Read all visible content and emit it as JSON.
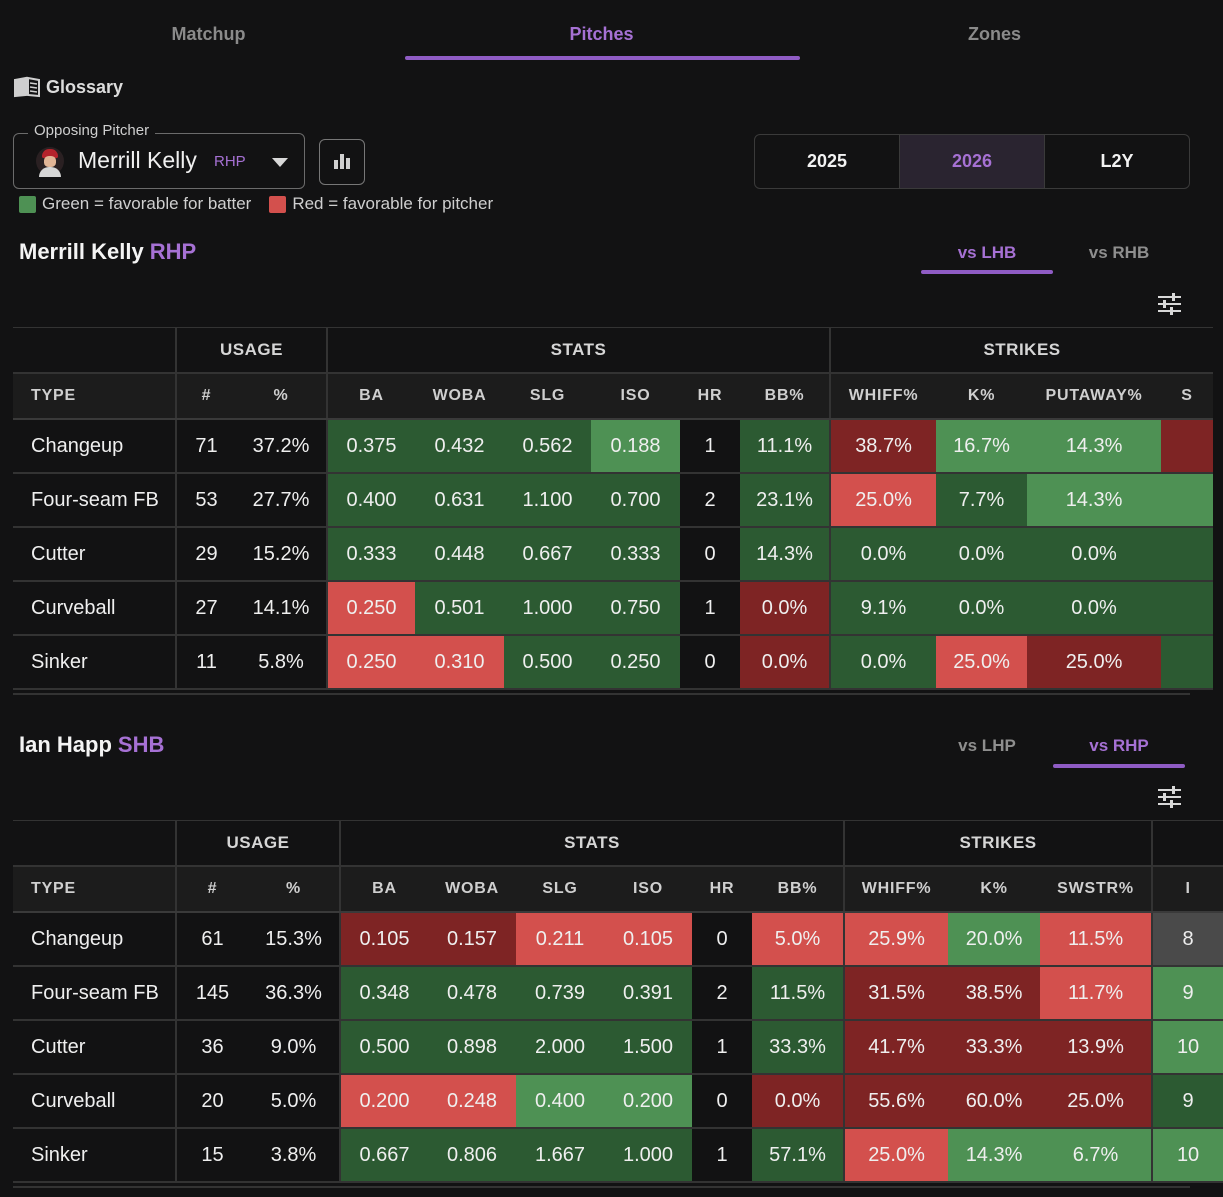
{
  "tabs": [
    "Matchup",
    "Pitches",
    "Zones"
  ],
  "active_tab": "Pitches",
  "glossary_label": "Glossary",
  "opposing_pitcher": {
    "label": "Opposing Pitcher",
    "name": "Merrill Kelly",
    "hand": "RHP"
  },
  "seasons": [
    "2025",
    "2026",
    "L2Y"
  ],
  "active_season": "2026",
  "legend": {
    "green": "Green = favorable for batter",
    "red": "Red = favorable for pitcher"
  },
  "colors": {
    "accent": "#a671d4",
    "green": "#2c5a32",
    "light_green": "#4e9154",
    "red": "#d3504d",
    "dark_red": "#7e2424"
  },
  "pitcher_section": {
    "name": "Merrill Kelly",
    "hand": "RHP",
    "splits": [
      "vs LHB",
      "vs RHB"
    ],
    "active_split": "vs LHB",
    "group_headers": [
      "",
      "USAGE",
      "STATS",
      "STRIKES"
    ],
    "columns": [
      "TYPE",
      "#",
      "%",
      "BA",
      "WOBA",
      "SLG",
      "ISO",
      "HR",
      "BB%",
      "WHIFF%",
      "K%",
      "PUTAWAY%",
      "S"
    ],
    "rows": [
      {
        "type": "Changeup",
        "count": "71",
        "pct": "37.2%",
        "ba": "0.375",
        "woba": "0.432",
        "slg": "0.562",
        "iso": "0.188",
        "hr": "1",
        "bb": "11.1%",
        "whiff": "38.7%",
        "k": "16.7%",
        "putaway": "14.3%",
        "extra": ""
      },
      {
        "type": "Four-seam FB",
        "count": "53",
        "pct": "27.7%",
        "ba": "0.400",
        "woba": "0.631",
        "slg": "1.100",
        "iso": "0.700",
        "hr": "2",
        "bb": "23.1%",
        "whiff": "25.0%",
        "k": "7.7%",
        "putaway": "14.3%",
        "extra": ""
      },
      {
        "type": "Cutter",
        "count": "29",
        "pct": "15.2%",
        "ba": "0.333",
        "woba": "0.448",
        "slg": "0.667",
        "iso": "0.333",
        "hr": "0",
        "bb": "14.3%",
        "whiff": "0.0%",
        "k": "0.0%",
        "putaway": "0.0%",
        "extra": ""
      },
      {
        "type": "Curveball",
        "count": "27",
        "pct": "14.1%",
        "ba": "0.250",
        "woba": "0.501",
        "slg": "1.000",
        "iso": "0.750",
        "hr": "1",
        "bb": "0.0%",
        "whiff": "9.1%",
        "k": "0.0%",
        "putaway": "0.0%",
        "extra": ""
      },
      {
        "type": "Sinker",
        "count": "11",
        "pct": "5.8%",
        "ba": "0.250",
        "woba": "0.310",
        "slg": "0.500",
        "iso": "0.250",
        "hr": "0",
        "bb": "0.0%",
        "whiff": "0.0%",
        "k": "25.0%",
        "putaway": "25.0%",
        "extra": ""
      }
    ]
  },
  "batter_section": {
    "name": "Ian Happ",
    "hand": "SHB",
    "splits": [
      "vs LHP",
      "vs RHP"
    ],
    "active_split": "vs RHP",
    "group_headers": [
      "",
      "USAGE",
      "STATS",
      "STRIKES",
      ""
    ],
    "columns": [
      "TYPE",
      "#",
      "%",
      "BA",
      "WOBA",
      "SLG",
      "ISO",
      "HR",
      "BB%",
      "WHIFF%",
      "K%",
      "SWSTR%",
      "I"
    ],
    "rows": [
      {
        "type": "Changeup",
        "count": "61",
        "pct": "15.3%",
        "ba": "0.105",
        "woba": "0.157",
        "slg": "0.211",
        "iso": "0.105",
        "hr": "0",
        "bb": "5.0%",
        "whiff": "25.9%",
        "k": "20.0%",
        "swstr": "11.5%",
        "extra": "8"
      },
      {
        "type": "Four-seam FB",
        "count": "145",
        "pct": "36.3%",
        "ba": "0.348",
        "woba": "0.478",
        "slg": "0.739",
        "iso": "0.391",
        "hr": "2",
        "bb": "11.5%",
        "whiff": "31.5%",
        "k": "38.5%",
        "swstr": "11.7%",
        "extra": "9"
      },
      {
        "type": "Cutter",
        "count": "36",
        "pct": "9.0%",
        "ba": "0.500",
        "woba": "0.898",
        "slg": "2.000",
        "iso": "1.500",
        "hr": "1",
        "bb": "33.3%",
        "whiff": "41.7%",
        "k": "33.3%",
        "swstr": "13.9%",
        "extra": "10"
      },
      {
        "type": "Curveball",
        "count": "20",
        "pct": "5.0%",
        "ba": "0.200",
        "woba": "0.248",
        "slg": "0.400",
        "iso": "0.200",
        "hr": "0",
        "bb": "0.0%",
        "whiff": "55.6%",
        "k": "60.0%",
        "swstr": "25.0%",
        "extra": "9"
      },
      {
        "type": "Sinker",
        "count": "15",
        "pct": "3.8%",
        "ba": "0.667",
        "woba": "0.806",
        "slg": "1.667",
        "iso": "1.000",
        "hr": "1",
        "bb": "57.1%",
        "whiff": "25.0%",
        "k": "14.3%",
        "swstr": "6.7%",
        "extra": "10"
      }
    ]
  }
}
